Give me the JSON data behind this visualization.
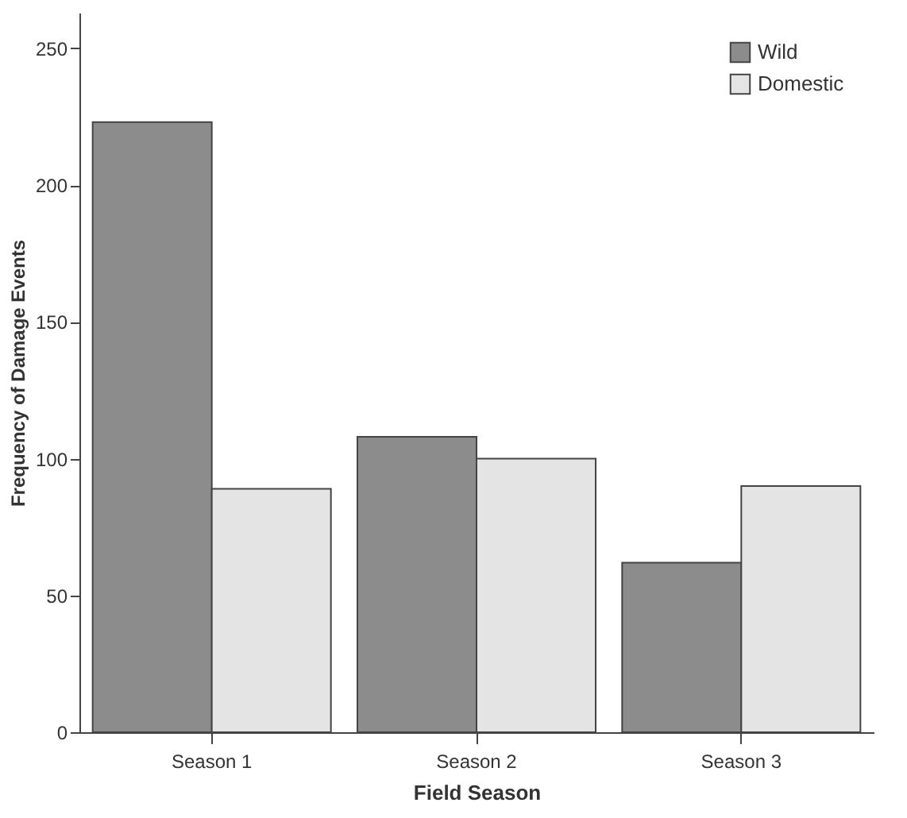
{
  "chart_data": {
    "type": "bar",
    "xlabel": "Field Season",
    "ylabel": "Frequency of Damage Events",
    "categories": [
      "Season 1",
      "Season 2",
      "Season 3"
    ],
    "series": [
      {
        "name": "Wild",
        "color": "#8c8c8c",
        "values": [
          223,
          108,
          62
        ]
      },
      {
        "name": "Domestic",
        "color": "#e4e4e4",
        "values": [
          89,
          100,
          90
        ]
      }
    ],
    "ylim": [
      0,
      263
    ],
    "yticks": [
      0,
      50,
      100,
      150,
      200,
      250
    ],
    "grid": false,
    "legend": "top right"
  }
}
